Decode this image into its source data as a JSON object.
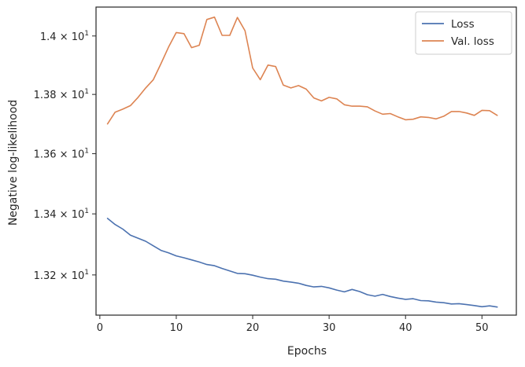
{
  "chart_data": {
    "type": "line",
    "xlabel": "Epochs",
    "ylabel": "Negative log-likelihood",
    "yscale": "log",
    "xlim": [
      -0.5,
      54.5
    ],
    "ylim": [
      13.07,
      14.1
    ],
    "x_ticks": [
      {
        "value": 0,
        "label": "0"
      },
      {
        "value": 10,
        "label": "10"
      },
      {
        "value": 20,
        "label": "20"
      },
      {
        "value": 30,
        "label": "30"
      },
      {
        "value": 40,
        "label": "40"
      },
      {
        "value": 50,
        "label": "50"
      }
    ],
    "y_ticks": [
      {
        "value": 13.2,
        "base": "1.32",
        "exp": "1"
      },
      {
        "value": 13.4,
        "base": "1.34",
        "exp": "1"
      },
      {
        "value": 13.6,
        "base": "1.36",
        "exp": "1"
      },
      {
        "value": 13.8,
        "base": "1.38",
        "exp": "1"
      },
      {
        "value": 14.0,
        "base": "1.4",
        "exp": "1"
      }
    ],
    "tick_times": "×",
    "tick_base10": "10",
    "grid": false,
    "legend_position": "top-right",
    "x": [
      1,
      2,
      3,
      4,
      5,
      6,
      7,
      8,
      9,
      10,
      11,
      12,
      13,
      14,
      15,
      16,
      17,
      18,
      19,
      20,
      21,
      22,
      23,
      24,
      25,
      26,
      27,
      28,
      29,
      30,
      31,
      32,
      33,
      34,
      35,
      36,
      37,
      38,
      39,
      40,
      41,
      42,
      43,
      44,
      45,
      46,
      47,
      48,
      49,
      50,
      51,
      52
    ],
    "series": [
      {
        "name": "Loss",
        "color": "#4c72b0",
        "values": [
          13.385,
          13.365,
          13.35,
          13.33,
          13.32,
          13.31,
          13.295,
          13.28,
          13.272,
          13.262,
          13.256,
          13.249,
          13.242,
          13.234,
          13.23,
          13.221,
          13.213,
          13.205,
          13.204,
          13.199,
          13.193,
          13.188,
          13.186,
          13.18,
          13.177,
          13.173,
          13.166,
          13.161,
          13.163,
          13.158,
          13.151,
          13.145,
          13.153,
          13.146,
          13.136,
          13.131,
          13.137,
          13.13,
          13.125,
          13.121,
          13.123,
          13.117,
          13.116,
          13.112,
          13.11,
          13.106,
          13.107,
          13.104,
          13.101,
          13.097,
          13.1,
          13.096
        ]
      },
      {
        "name": "Val. loss",
        "color": "#dd8452",
        "values": [
          13.7,
          13.74,
          13.75,
          13.762,
          13.79,
          13.822,
          13.85,
          13.905,
          13.962,
          14.012,
          14.008,
          13.96,
          13.968,
          14.057,
          14.065,
          14.002,
          14.002,
          14.064,
          14.018,
          13.89,
          13.85,
          13.9,
          13.895,
          13.832,
          13.822,
          13.83,
          13.818,
          13.788,
          13.778,
          13.79,
          13.785,
          13.765,
          13.76,
          13.76,
          13.758,
          13.744,
          13.733,
          13.735,
          13.724,
          13.714,
          13.716,
          13.724,
          13.722,
          13.717,
          13.726,
          13.742,
          13.742,
          13.737,
          13.729,
          13.746,
          13.745,
          13.729
        ]
      }
    ]
  }
}
